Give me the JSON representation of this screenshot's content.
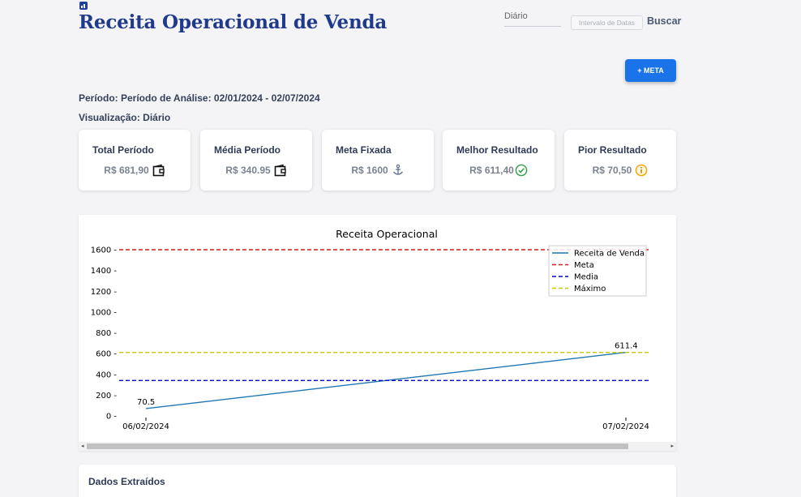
{
  "header": {
    "title": "Receita Operacional de Venda",
    "view_select_value": "Diário",
    "date_range_placeholder": "Intervalo de Datas",
    "search_label": "Buscar"
  },
  "actions": {
    "add_meta_label": "+ META"
  },
  "info": {
    "period": "Período: Período de Análise: 02/01/2024 - 02/07/2024",
    "view": "Visualização: Diário"
  },
  "cards": [
    {
      "title": "Total Período",
      "value": "R$ 681,90",
      "icon": "wallet-icon"
    },
    {
      "title": "Média Período",
      "value": "R$ 340.95",
      "icon": "wallet-icon"
    },
    {
      "title": "Meta Fixada",
      "value": "R$ 1600",
      "icon": "anchor-icon"
    },
    {
      "title": "Melhor Resultado",
      "value": "R$ 611,40",
      "icon": "check-circle-icon"
    },
    {
      "title": "Pior Resultado",
      "value": "R$ 70,50",
      "icon": "info-circle-icon"
    }
  ],
  "data_section": {
    "title": "Dados Extraídos"
  },
  "colors": {
    "title": "#1f3a8c",
    "primary_button": "#1a73e8",
    "series_revenue": "#1f77b4",
    "series_meta": "#e31a1c",
    "series_media": "#0000dd",
    "series_max": "#c8c800",
    "check": "#2e9e44",
    "warning": "#f0a000"
  },
  "chart_data": {
    "type": "line",
    "title": "Receita Operacional",
    "categories": [
      "06/02/2024",
      "07/02/2024"
    ],
    "yticks": [
      "0",
      "200",
      "400",
      "600",
      "800",
      "1000",
      "1200",
      "1400",
      "1600"
    ],
    "ylim": [
      0,
      1600
    ],
    "series": [
      {
        "name": "Receita de Venda",
        "values": [
          70.5,
          611.4
        ],
        "style": "solid",
        "color": "#1f77b4"
      },
      {
        "name": "Meta",
        "values": [
          1600,
          1600
        ],
        "style": "dashed",
        "color": "#e31a1c"
      },
      {
        "name": "Media",
        "values": [
          340.95,
          340.95
        ],
        "style": "dashed",
        "color": "#0000dd"
      },
      {
        "name": "Máximo",
        "values": [
          611.4,
          611.4
        ],
        "style": "dashed",
        "color": "#c8c800"
      }
    ],
    "data_labels": [
      "70.5",
      "611.4"
    ],
    "legend_position": "top-right",
    "grid": false
  }
}
